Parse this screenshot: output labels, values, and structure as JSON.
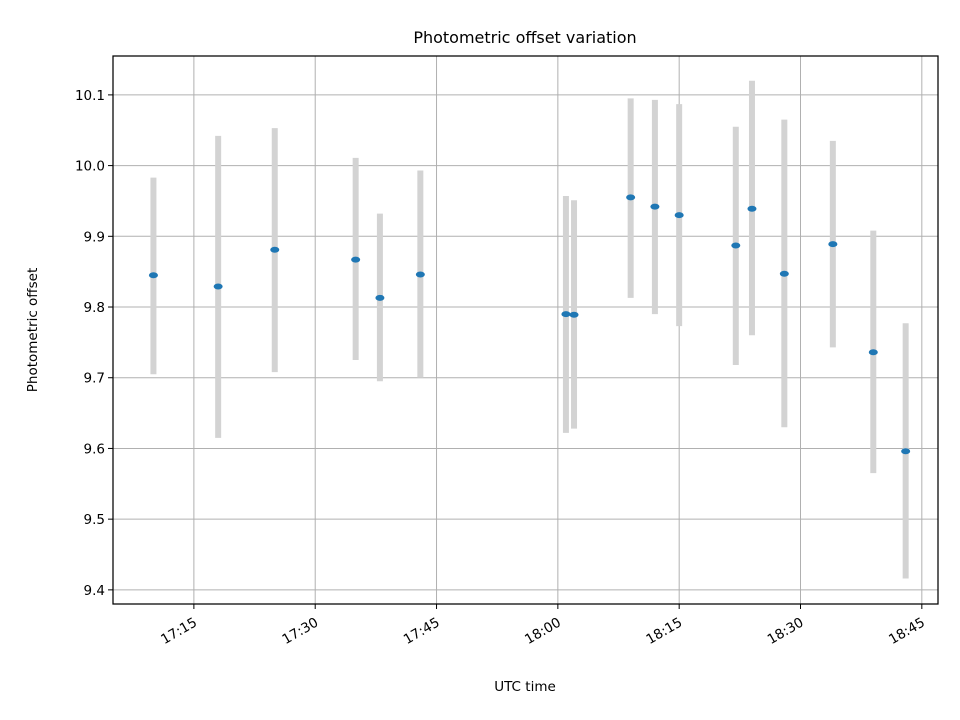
{
  "chart_data": {
    "type": "scatter",
    "title": "Photometric offset variation",
    "xlabel": "UTC time",
    "ylabel": "Photometric offset",
    "x_unit": "UTC time (HH:MM)",
    "xlim": [
      "17:05",
      "18:47"
    ],
    "ylim": [
      9.38,
      10.155
    ],
    "x_ticks": [
      "17:15",
      "17:30",
      "17:45",
      "18:00",
      "18:15",
      "18:30",
      "18:45"
    ],
    "y_ticks": [
      9.4,
      9.5,
      9.6,
      9.7,
      9.8,
      9.9,
      10.0,
      10.1
    ],
    "y_tick_labels": [
      "9.4",
      "9.5",
      "9.6",
      "9.7",
      "9.8",
      "9.9",
      "10.0",
      "10.1"
    ],
    "grid": true,
    "colors": {
      "point": "#1f77b4",
      "error_bar": "#d3d3d3",
      "grid": "#b0b0b0"
    },
    "points": [
      {
        "x": "17:10",
        "y": 9.845,
        "y_low": 9.705,
        "y_high": 9.983
      },
      {
        "x": "17:18",
        "y": 9.829,
        "y_low": 9.615,
        "y_high": 10.042
      },
      {
        "x": "17:25",
        "y": 9.881,
        "y_low": 9.708,
        "y_high": 10.053
      },
      {
        "x": "17:35",
        "y": 9.867,
        "y_low": 9.725,
        "y_high": 10.011
      },
      {
        "x": "17:38",
        "y": 9.813,
        "y_low": 9.695,
        "y_high": 9.932
      },
      {
        "x": "17:43",
        "y": 9.846,
        "y_low": 9.7,
        "y_high": 9.993
      },
      {
        "x": "18:01",
        "y": 9.79,
        "y_low": 9.622,
        "y_high": 9.957
      },
      {
        "x": "18:02",
        "y": 9.789,
        "y_low": 9.628,
        "y_high": 9.951
      },
      {
        "x": "18:09",
        "y": 9.955,
        "y_low": 9.813,
        "y_high": 10.095
      },
      {
        "x": "18:12",
        "y": 9.942,
        "y_low": 9.79,
        "y_high": 10.093
      },
      {
        "x": "18:15",
        "y": 9.93,
        "y_low": 9.773,
        "y_high": 10.087
      },
      {
        "x": "18:22",
        "y": 9.887,
        "y_low": 9.718,
        "y_high": 10.055
      },
      {
        "x": "18:24",
        "y": 9.939,
        "y_low": 9.76,
        "y_high": 10.12
      },
      {
        "x": "18:28",
        "y": 9.847,
        "y_low": 9.63,
        "y_high": 10.065
      },
      {
        "x": "18:34",
        "y": 9.889,
        "y_low": 9.743,
        "y_high": 10.035
      },
      {
        "x": "18:39",
        "y": 9.736,
        "y_low": 9.565,
        "y_high": 9.908
      },
      {
        "x": "18:43",
        "y": 9.596,
        "y_low": 9.416,
        "y_high": 9.777
      }
    ]
  }
}
